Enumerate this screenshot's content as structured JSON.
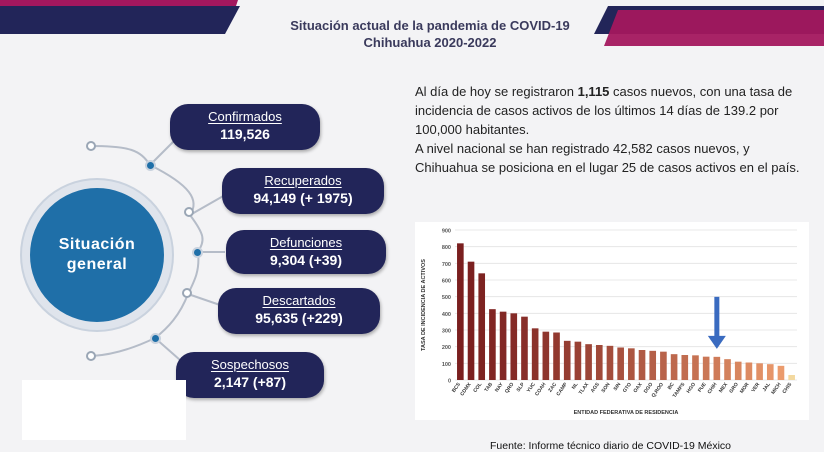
{
  "header": {
    "title_line1": "Situación actual de la pandemia de COVID-19",
    "title_line2": "Chihuahua 2020-2022"
  },
  "colors": {
    "navy": "#222559",
    "blue": "#1f6fa8",
    "magenta": "#a3175e",
    "bar_dark": "#7a1f1f",
    "bar_light": "#f0a070",
    "arrow": "#3a6bc0"
  },
  "summary": {
    "circle_line1": "Situación",
    "circle_line2": "general",
    "cards": [
      {
        "label": "Confirmados",
        "value": "119,526"
      },
      {
        "label": "Recuperados",
        "value": "94,149 (+ 1975)"
      },
      {
        "label": "Defunciones",
        "value": "9,304 (+39)"
      },
      {
        "label": "Descartados",
        "value": "95,635 (+229)"
      },
      {
        "label": "Sospechosos",
        "value": "2,147 (+87)"
      }
    ]
  },
  "info": {
    "p1_a": "Al día de hoy se registraron ",
    "p1_b": "1,115",
    "p1_c": " casos nuevos, con una tasa de incidencia de casos activos de los últimos 14 días de 139.2 por 100,000 habitantes.",
    "p2": "A nivel nacional se han registrado 42,582 casos nuevos, y Chihuahua se posiciona en el lugar 25 de casos activos en el país."
  },
  "chart_data": {
    "type": "bar",
    "xlabel": "ENTIDAD FEDERATIVA DE RESIDENCIA",
    "ylabel": "TASA DE INCIDENCIA DE ACTIVOS",
    "ylim": [
      0,
      900
    ],
    "yticks": [
      0,
      100,
      200,
      300,
      400,
      500,
      600,
      700,
      800,
      900
    ],
    "grid": true,
    "highlight_category": "CHIH",
    "categories": [
      "BCS",
      "CDMX",
      "COL",
      "TAB",
      "NAY",
      "QRO",
      "SLP",
      "YUC",
      "COAH",
      "ZAC",
      "CAMP",
      "NL",
      "TLAX",
      "AGS",
      "SON",
      "SIN",
      "GTO",
      "OAX",
      "DGO",
      "Q.ROO",
      "BC",
      "TAMPS",
      "HGO",
      "PUE",
      "CHIH",
      "MEX",
      "GRO",
      "MOR",
      "VER",
      "JAL",
      "MICH",
      "CHIS"
    ],
    "values": [
      820,
      710,
      640,
      425,
      410,
      400,
      380,
      310,
      290,
      285,
      235,
      230,
      215,
      210,
      205,
      195,
      190,
      180,
      175,
      170,
      155,
      150,
      148,
      140,
      139,
      125,
      110,
      105,
      100,
      95,
      85,
      30
    ]
  },
  "footer": {
    "source": "Fuente: Informe técnico diario de COVID-19 México"
  }
}
